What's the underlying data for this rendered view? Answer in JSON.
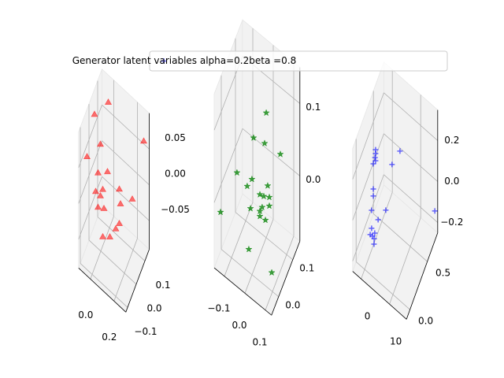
{
  "chart_data": [
    {
      "type": "scatter3d",
      "marker": "^",
      "color": "#ff0000",
      "xlim": [
        -0.1,
        0.3
      ],
      "ylim": [
        -0.12,
        0.15
      ],
      "zlim": [
        -0.09,
        0.1
      ],
      "xticks": [
        {
          "value": 0,
          "label": "0.0"
        },
        0.2
      ],
      "yticks": [
        {
          "value": -0.1,
          "label": "−0.1"
        },
        {
          "value": 0,
          "label": "0.0"
        },
        0.1
      ],
      "zticks": [
        {
          "value": -0.05,
          "label": "−0.05"
        },
        {
          "value": 0,
          "label": "0.00"
        },
        0.05
      ],
      "x": [
        -0.01,
        -0.09,
        0.29,
        -0.04,
        -0.08,
        0.02,
        -0.06,
        -0.02,
        -0.08,
        -0.04,
        0.12,
        0.23,
        -0.01,
        0.13,
        0.09,
        0.12,
        0.04,
        -0.02,
        -0.06
      ],
      "y": [
        0.1,
        0.05,
        0.1,
        0.05,
        -0.05,
        0.05,
        0.05,
        0.05,
        0.05,
        0.05,
        0.05,
        0.05,
        0.05,
        0.05,
        0.05,
        0.05,
        0.05,
        0.05,
        0.05
      ],
      "z": [
        0.084,
        0.071,
        0.076,
        0.037,
        0.046,
        0.008,
        -0.006,
        -0.023,
        -0.035,
        -0.035,
        -0.001,
        0.002,
        -0.048,
        -0.02,
        -0.061,
        -0.049,
        -0.08,
        -0.089,
        -0.054
      ]
    },
    {
      "type": "scatter3d",
      "marker": "*",
      "color": "#008000",
      "xlim": [
        -0.15,
        0.13
      ],
      "ylim": [
        -0.05,
        0.15
      ],
      "zlim": [
        -0.09,
        0.15
      ],
      "xticks": [
        {
          "value": -0.1,
          "label": "−0.1"
        },
        {
          "value": 0,
          "label": "0.0"
        },
        0.1
      ],
      "yticks": [
        {
          "value": 0,
          "label": "0.0"
        },
        0.1
      ],
      "zticks": [
        {
          "value": 0,
          "label": "0.0"
        },
        0.1
      ],
      "x": [
        0.035,
        -0.027,
        0.027,
        0.104,
        -0.108,
        -0.035,
        -0.058,
        0.004,
        0.023,
        0.05,
        0.042,
        -0.119,
        -0.042,
        0.004,
        0.015,
        0.05,
        0.031,
        0.004,
        0.019,
        0.131
      ],
      "y": [
        0.05,
        0.05,
        0.05,
        0.05,
        0.05,
        0.05,
        0.05,
        0.05,
        0.05,
        0.05,
        0.05,
        -0.05,
        0.05,
        0.05,
        0.05,
        0.05,
        0.05,
        0.05,
        -0.05,
        -0.05
      ],
      "z": [
        0.116,
        0.067,
        0.072,
        0.075,
        0.0,
        0.008,
        -0.007,
        -0.004,
        -0.002,
        0.003,
        0.017,
        -0.006,
        -0.034,
        -0.027,
        -0.019,
        -0.009,
        -0.033,
        -0.034,
        -0.025,
        -0.031
      ]
    },
    {
      "type": "scatter3d",
      "marker": "+",
      "color": "#0000ff",
      "name": "Generator latent variables alpha=0.2beta =0.8",
      "legend": "upper right",
      "xlim": [
        -3,
        16
      ],
      "ylim": [
        -0.1,
        0.8
      ],
      "zlim": [
        -0.25,
        0.35
      ],
      "xticks": [
        0,
        10
      ],
      "yticks": [
        {
          "value": 0,
          "label": "0.0"
        },
        0.5
      ],
      "zticks": [
        {
          "value": -0.2,
          "label": "−0.2"
        },
        {
          "value": 0,
          "label": "0.0"
        },
        0.2
      ],
      "x": [
        0.2,
        0.2,
        0,
        0.2,
        -0.6,
        8.8,
        6.0,
        -0.6,
        -0.6,
        3.8,
        -1.2,
        1.1,
        -1.2,
        -0.1,
        -0.9,
        -1.7,
        -0.3,
        2.1,
        15.6
      ],
      "y": [
        0.3,
        0.3,
        0.3,
        0.3,
        0.3,
        0.3,
        0.3,
        0.3,
        0.3,
        0.3,
        0.3,
        0.3,
        0.3,
        0.3,
        0.3,
        0.3,
        0.3,
        0.1,
        0.75
      ],
      "z": [
        0.196,
        0.177,
        0.155,
        0.142,
        0.117,
        0.295,
        0.195,
        -0.006,
        -0.04,
        -0.055,
        -0.117,
        -0.135,
        -0.205,
        -0.215,
        -0.24,
        -0.242,
        -0.245,
        -0.148,
        -0.125
      ]
    }
  ]
}
